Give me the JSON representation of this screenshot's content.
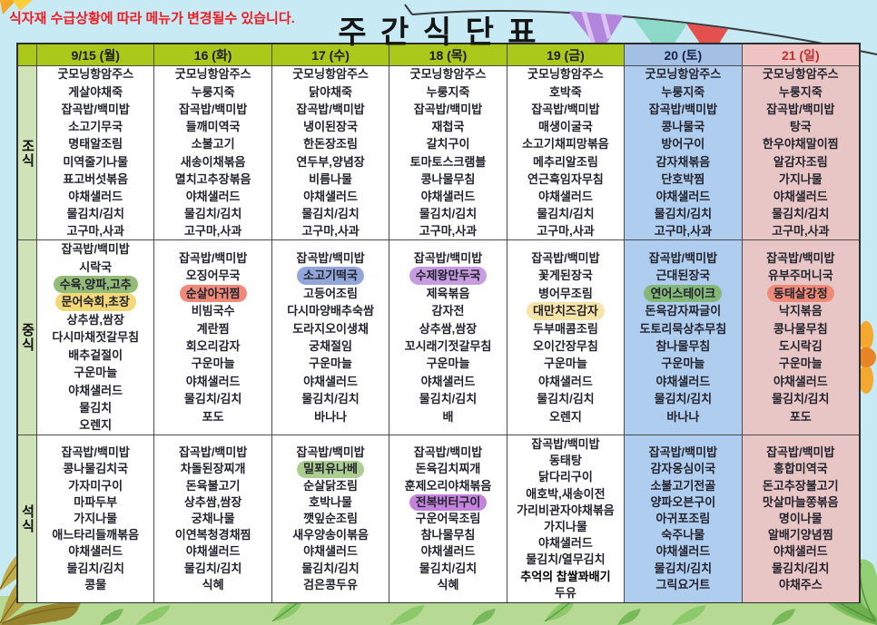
{
  "page": {
    "notice": "식자재 수급상황에 따라 메뉴가 변경될수 있습니다.",
    "title": "주 간 식 단 표"
  },
  "badge_new_label": "new",
  "colors": {
    "page_bg": "#c7eaf4",
    "header_green": "#a9c81a",
    "label_col_bg": "#cfe2b8",
    "weekday_cell_bg": "#ffffff",
    "saturday_header_bg": "#a3c0e4",
    "saturday_cell_bg": "#afcdee",
    "sunday_header_bg": "#efc3c1",
    "sunday_cell_bg": "#e9c6c6",
    "notice_red": "#ee1c24",
    "text_dark": "#23232e",
    "weekday_day_text": "#1a1a26",
    "saturday_day_text": "#17214e",
    "sunday_day_text": "#bb3030",
    "highlights": {
      "green": "#93bc78",
      "yellow": "#f3d878",
      "salmon": "#ef8a78",
      "blue": "#93a6d9",
      "purple": "#c79ce0",
      "lightyellow": "#f7e4a9",
      "green2": "#83b878",
      "green3": "#abcd90",
      "orchid": "#c683dd"
    }
  },
  "table": {
    "days": [
      {
        "label": "9/15 (월)",
        "kind": "weekday"
      },
      {
        "label": "16 (화)",
        "kind": "weekday"
      },
      {
        "label": "17 (수)",
        "kind": "weekday"
      },
      {
        "label": "18 (목)",
        "kind": "weekday"
      },
      {
        "label": "19 (금)",
        "kind": "weekday"
      },
      {
        "label": "20 (토)",
        "kind": "saturday"
      },
      {
        "label": "21 (일)",
        "kind": "sunday"
      }
    ],
    "meals": [
      {
        "label": "조식",
        "cells": [
          [
            "굿모닝항암주스",
            "게살야채죽",
            "잡곡밥/백미밥",
            "소고기무국",
            "명태알조림",
            "미역줄기나물",
            "표고버섯볶음",
            "야채샐러드",
            "물김치/김치",
            "고구마,사과"
          ],
          [
            "굿모닝항암주스",
            "누룽지죽",
            "잡곡밥/백미밥",
            "들깨미역국",
            "소불고기",
            "새송이채볶음",
            "멸치고추장볶음",
            "야채샐러드",
            "물김치/김치",
            "고구마,사과"
          ],
          [
            "굿모닝항암주스",
            "닭야채죽",
            "잡곡밥/백미밥",
            "냉이된장국",
            "한돈장조림",
            "연두부,양념장",
            "비름나물",
            "야채샐러드",
            "물김치/김치",
            "고구마,사과"
          ],
          [
            "굿모닝항암주스",
            "누룽지죽",
            "잡곡밥/백미밥",
            "재첩국",
            "갈치구이",
            "토마토스크램블",
            "콩나물무침",
            "야채샐러드",
            "물김치/김치",
            "고구마,사과"
          ],
          [
            "굿모닝항암주스",
            "호박죽",
            "잡곡밥/백미밥",
            "매생이굴국",
            "소고기채피망볶음",
            "메추리알조림",
            "연근흑임자무침",
            "야채샐러드",
            "물김치/김치",
            "고구마,사과"
          ],
          [
            "굿모닝항암주스",
            "누룽지죽",
            "잡곡밥/백미밥",
            "콩나물국",
            "방어구이",
            "감자채볶음",
            "단호박찜",
            "야채샐러드",
            "물김치/김치",
            "고구마,사과"
          ],
          [
            "굿모닝항암주스",
            "누룽지죽",
            "잡곡밥/백미밥",
            "탕국",
            "한우야채말이찜",
            "알감자조림",
            "가지나물",
            "야채샐러드",
            "물김치/김치",
            "고구마,사과"
          ]
        ]
      },
      {
        "label": "중식",
        "cells": [
          [
            "잡곡밥/백미밥",
            "시락국",
            {
              "text": "수육,양파,고추",
              "highlight": "green"
            },
            {
              "text": "문어숙회,초장",
              "highlight": "yellow"
            },
            "상추쌈,쌈장",
            "다시마채젓갈무침",
            "배추겉절이",
            "구운마늘",
            "야채샐러드",
            "물김치",
            "오렌지"
          ],
          [
            "잡곡밥/백미밥",
            "오징어무국",
            {
              "text": "순살아귀찜",
              "highlight": "salmon"
            },
            "비빔국수",
            "계란찜",
            "회오리감자",
            "구운마늘",
            "야채샐러드",
            "물김치/김치",
            "포도"
          ],
          [
            "잡곡밥/백미밥",
            {
              "text": "소고기떡국",
              "highlight": "blue"
            },
            "고등어조림",
            "다시마양배추숙쌈",
            "도라지오이생채",
            "궁채절임",
            "구운마늘",
            "야채샐러드",
            "물김치/김치",
            "바나나"
          ],
          [
            "잡곡밥/백미밥",
            {
              "text": "수제왕만두국",
              "highlight": "purple"
            },
            "제육볶음",
            "감자전",
            "상추쌈,쌈장",
            "꼬시래기젓갈무침",
            "구운마늘",
            "야채샐러드",
            "물김치/김치",
            "배"
          ],
          [
            "잡곡밥/백미밥",
            "꽃게된장국",
            "병어무조림",
            {
              "text": "대만치즈감자",
              "highlight": "lightyellow",
              "badge": "new"
            },
            "두부매콤조림",
            "오이간장무침",
            "구운마늘",
            "야채샐러드",
            "물김치/김치",
            "오렌지"
          ],
          [
            "잡곡밥/백미밥",
            "근대된장국",
            {
              "text": "연어스테이크",
              "highlight": "green2"
            },
            "돈육감자짜글이",
            "도토리묵상추무침",
            "참나물무침",
            "구운마늘",
            "야채샐러드",
            "물김치/김치",
            "바나나"
          ],
          [
            "잡곡밥/백미밥",
            "유부주머니국",
            {
              "text": "동태살강정",
              "highlight": "salmon",
              "badge": "new"
            },
            "낙지볶음",
            "콩나물무침",
            "도시락김",
            "구운마늘",
            "야채샐러드",
            "물김치/김치",
            "포도"
          ]
        ]
      },
      {
        "label": "석식",
        "cells": [
          [
            "잡곡밥/백미밥",
            "콩나물김치국",
            "가자미구이",
            "마파두부",
            "가지나물",
            "애느타리들깨볶음",
            "야채샐러드",
            "물김치/김치",
            "콩물"
          ],
          [
            "잡곡밥/백미밥",
            "차돌된장찌개",
            "돈육불고기",
            "상추쌈,쌈장",
            "궁채나물",
            "이연복청경채찜",
            "야채샐러드",
            "물김치/김치",
            "식혜"
          ],
          [
            "잡곡밥/백미밥",
            {
              "text": "밀푀유나베",
              "highlight": "green3"
            },
            "순살닭조림",
            "호박나물",
            "깻잎순조림",
            "새우양송이볶음",
            "야채샐러드",
            "물김치/김치",
            "검은콩두유"
          ],
          [
            "잡곡밥/백미밥",
            "돈육김치찌개",
            "훈제오리야채볶음",
            {
              "text": "전복버터구이",
              "highlight": "orchid"
            },
            "구운어묵조림",
            "참나물무침",
            "야채샐러드",
            "물김치/김치",
            "식혜"
          ],
          [
            "잡곡밥/백미밥",
            "동태탕",
            "닭다리구이",
            "애호박,새송이전",
            "가리비관자야채볶음",
            "가지나물",
            "야채샐러드",
            "물김치/열무김치",
            {
              "text": "추억의 찹쌀꽈배기",
              "strong": true
            },
            "두유"
          ],
          [
            "잡곡밥/백미밥",
            "감자옹심이국",
            "소불고기전골",
            "양파오븐구이",
            "아귀포조림",
            "숙주나물",
            "야채샐러드",
            "물김치/김치",
            "그릭요거트"
          ],
          [
            "잡곡밥/백미밥",
            "홍합미역국",
            "돈고추장불고기",
            "맛살마늘쫑볶음",
            "명이나물",
            "알배기양념찜",
            "야채샐러드",
            "물김치/김치",
            "야채주스"
          ]
        ]
      }
    ]
  }
}
